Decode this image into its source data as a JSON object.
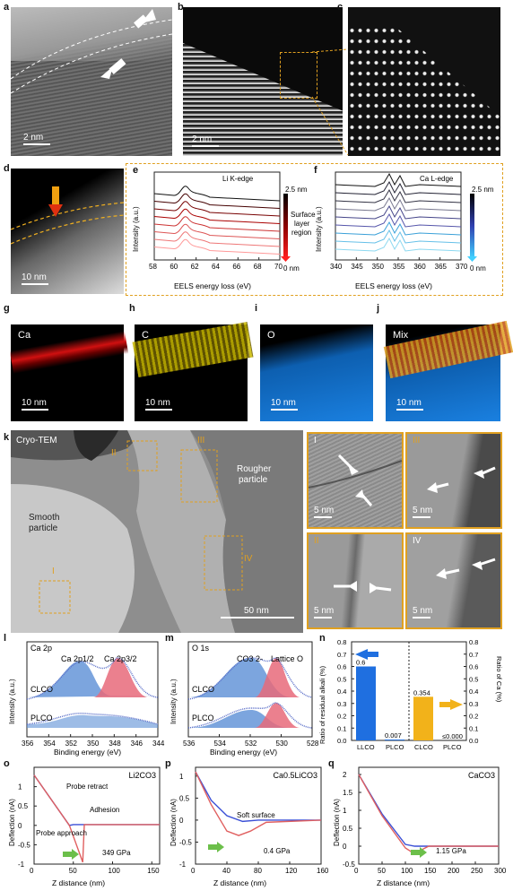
{
  "panels": {
    "a": "a",
    "b": "b",
    "c": "c",
    "d": "d",
    "e": "e",
    "f": "f",
    "g": "g",
    "h": "h",
    "i": "i",
    "j": "j",
    "k": "k",
    "l": "l",
    "m": "m",
    "n": "n",
    "o": "o",
    "p": "p",
    "q": "q"
  },
  "scalebars": {
    "a": "2 nm",
    "b": "2 nm",
    "d": "10 nm",
    "g": "10 nm",
    "h": "10 nm",
    "i": "10 nm",
    "j": "10 nm",
    "k": "50 nm",
    "kI": "5 nm",
    "kII": "5 nm",
    "kIII": "5 nm",
    "kIV": "5 nm"
  },
  "eels": {
    "e": {
      "edge": "Li K-edge",
      "ylabel": "Intensity (a.u.)",
      "xlabel": "EELS energy loss (eV)",
      "ticks": [
        "58",
        "60",
        "62",
        "64",
        "66",
        "68",
        "70"
      ],
      "bar_top": "2.5 nm",
      "bar_bottom": "0 nm",
      "bar_note": [
        "Surface",
        "layer",
        "region"
      ]
    },
    "f": {
      "edge": "Ca L-edge",
      "ylabel": "Intensity (a.u.)",
      "xlabel": "EELS energy loss (eV)",
      "ticks": [
        "340",
        "345",
        "350",
        "355",
        "360",
        "365",
        "370"
      ],
      "bar_top": "2.5 nm",
      "bar_bottom": "0 nm"
    }
  },
  "maps": {
    "g": "Ca",
    "h": "C",
    "i": "O",
    "j": "Mix"
  },
  "cryo": {
    "title": "Cryo-TEM",
    "smooth": [
      "Smooth",
      "particle"
    ],
    "rough": [
      "Rougher",
      "particle"
    ],
    "regions": [
      "I",
      "II",
      "III",
      "IV"
    ]
  },
  "xps": {
    "l": {
      "title": "Ca 2p",
      "peak1": "Ca 2p1/2",
      "peak2": "Ca 2p3/2",
      "rows": [
        "CLCO",
        "PLCO"
      ],
      "ylabel": "Intensity (a.u.)",
      "xlabel": "Binding energy (eV)",
      "ticks": [
        "356",
        "354",
        "352",
        "350",
        "348",
        "346",
        "344"
      ]
    },
    "m": {
      "title": "O 1s",
      "peak1": "CO3 2-",
      "peak2": "Lattice O",
      "rows": [
        "CLCO",
        "PLCO"
      ],
      "ylabel": "Intensity (a.u.)",
      "xlabel": "Binding energy (eV)",
      "ticks": [
        "536",
        "534",
        "532",
        "530",
        "528"
      ]
    }
  },
  "chart_data": [
    {
      "type": "bar",
      "panel": "n",
      "categories": [
        "LLCO",
        "PLCO",
        "CLCO",
        "PLCO"
      ],
      "values": [
        0.6,
        0.007,
        0.354,
        0.0
      ],
      "labels": [
        "0.6",
        "0.007",
        "0.354",
        "≤0.000"
      ],
      "colors": [
        "#1f6fe0",
        "#1f6fe0",
        "#f2b21a",
        "#f2b21a"
      ],
      "ylabel": "Ratio of residual alkali (%)",
      "y2label": "Ratio of Ca (%)",
      "ylim": [
        0,
        0.8
      ],
      "yticks": [
        "0.0",
        "0.1",
        "0.2",
        "0.3",
        "0.4",
        "0.5",
        "0.6",
        "0.7",
        "0.8"
      ]
    },
    {
      "type": "line",
      "panel": "o",
      "title": "Li2CO3",
      "xlabel": "Z distance (nm)",
      "ylabel": "Deflection (nA)",
      "xticks": [
        "0",
        "50",
        "100",
        "150"
      ],
      "yticks": [
        "1",
        "0.5",
        "0",
        "-0.5",
        "-1"
      ],
      "xlim": [
        0,
        160
      ],
      "ylim": [
        -1,
        1.5
      ],
      "annotations": [
        "Probe retract",
        "Probe approach",
        "Adhesion",
        "349 GPa"
      ],
      "series": [
        {
          "color": "#3a4fd6",
          "x": [
            0,
            45,
            50,
            160
          ],
          "y": [
            1.3,
            0.0,
            0.02,
            0.02
          ]
        },
        {
          "color": "#e06060",
          "x": [
            0,
            45,
            62,
            64,
            160
          ],
          "y": [
            1.3,
            0.0,
            -0.95,
            0.02,
            0.02
          ]
        }
      ]
    },
    {
      "type": "line",
      "panel": "p",
      "title": "Ca0.5LiCO3",
      "xlabel": "Z distance (nm)",
      "ylabel": "Deflection (nA)",
      "xticks": [
        "0",
        "40",
        "80",
        "120",
        "160"
      ],
      "yticks": [
        "1",
        "0.5",
        "0",
        "-0.5",
        "-1"
      ],
      "xlim": [
        0,
        160
      ],
      "ylim": [
        -1,
        1.2
      ],
      "annotations": [
        "Soft surface",
        "0.4 GPa"
      ],
      "series": [
        {
          "color": "#3a4fd6",
          "x": [
            0,
            20,
            40,
            60,
            80,
            160
          ],
          "y": [
            1.1,
            0.45,
            0.1,
            -0.03,
            0.0,
            0.0
          ]
        },
        {
          "color": "#e06060",
          "x": [
            0,
            20,
            40,
            55,
            70,
            90,
            160
          ],
          "y": [
            1.1,
            0.35,
            -0.25,
            -0.35,
            -0.25,
            -0.05,
            0.0
          ]
        }
      ]
    },
    {
      "type": "line",
      "panel": "q",
      "title": "CaCO3",
      "xlabel": "Z distance (nm)",
      "ylabel": "Deflection (nA)",
      "xticks": [
        "0",
        "50",
        "100",
        "150",
        "200",
        "250",
        "300"
      ],
      "yticks": [
        "2",
        "1.5",
        "1",
        "0.5",
        "0",
        "-0.5"
      ],
      "xlim": [
        0,
        300
      ],
      "ylim": [
        -0.5,
        2.2
      ],
      "annotations": [
        "1.15 GPa"
      ],
      "series": [
        {
          "color": "#3a4fd6",
          "x": [
            0,
            50,
            100,
            120,
            300
          ],
          "y": [
            2.0,
            0.9,
            0.05,
            0.0,
            0.0
          ]
        },
        {
          "color": "#e06060",
          "x": [
            0,
            50,
            100,
            118,
            135,
            150,
            300
          ],
          "y": [
            2.0,
            0.85,
            -0.05,
            -0.2,
            -0.1,
            0.0,
            0.0
          ]
        }
      ]
    }
  ]
}
